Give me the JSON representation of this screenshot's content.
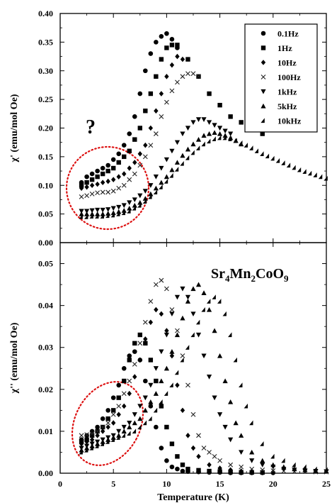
{
  "chart_data": [
    {
      "type": "scatter",
      "ylabel": "χ' (emu/mol Oe)",
      "xlabel": "",
      "xlim": [
        0,
        25
      ],
      "ylim": [
        0,
        0.4
      ],
      "yticks": [
        "0.00",
        "0.05",
        "0.10",
        "0.15",
        "0.20",
        "0.25",
        "0.30",
        "0.35",
        "0.40"
      ],
      "grid": false,
      "legend_position": "top-right",
      "annotation": "?",
      "highlight": "dotted red ellipse around low-temperature data",
      "series": [
        {
          "name": "0.1Hz",
          "marker": "circle",
          "x": [
            2,
            2.5,
            3,
            3.5,
            4,
            4.5,
            5,
            5.5,
            6,
            6.5,
            7,
            7.5,
            8,
            8.5,
            9,
            9.5,
            10,
            10.5,
            11
          ],
          "y": [
            0.105,
            0.115,
            0.12,
            0.125,
            0.13,
            0.135,
            0.145,
            0.155,
            0.17,
            0.19,
            0.22,
            0.26,
            0.3,
            0.33,
            0.35,
            0.36,
            0.365,
            0.355,
            0.34
          ]
        },
        {
          "name": "1Hz",
          "marker": "square",
          "x": [
            2,
            2.5,
            3,
            3.5,
            4,
            4.5,
            5,
            5.5,
            6,
            6.5,
            7,
            7.5,
            8,
            8.5,
            9,
            9.5,
            10,
            10.5,
            11,
            12,
            13,
            14,
            15,
            16,
            17,
            18,
            19
          ],
          "y": [
            0.1,
            0.105,
            0.11,
            0.115,
            0.12,
            0.125,
            0.13,
            0.14,
            0.15,
            0.16,
            0.18,
            0.2,
            0.23,
            0.26,
            0.29,
            0.32,
            0.34,
            0.345,
            0.345,
            0.32,
            0.29,
            0.26,
            0.24,
            0.22,
            0.21,
            0.2,
            0.19
          ]
        },
        {
          "name": "10Hz",
          "marker": "diamond",
          "x": [
            2,
            2.5,
            3,
            3.5,
            4,
            4.5,
            5,
            5.5,
            6,
            6.5,
            7,
            7.5,
            8,
            8.5,
            9,
            9.5,
            10,
            10.5,
            11,
            11.5
          ],
          "y": [
            0.095,
            0.097,
            0.1,
            0.102,
            0.105,
            0.107,
            0.11,
            0.115,
            0.12,
            0.13,
            0.14,
            0.155,
            0.17,
            0.2,
            0.23,
            0.26,
            0.29,
            0.31,
            0.325,
            0.32
          ]
        },
        {
          "name": "100Hz",
          "marker": "cross",
          "x": [
            2,
            2.5,
            3,
            3.5,
            4,
            4.5,
            5,
            5.5,
            6,
            6.5,
            7,
            7.5,
            8,
            8.5,
            9,
            9.5,
            10,
            10.5,
            11,
            11.5,
            12,
            12.5,
            13
          ],
          "y": [
            0.08,
            0.082,
            0.085,
            0.087,
            0.088,
            0.088,
            0.09,
            0.095,
            0.1,
            0.11,
            0.12,
            0.135,
            0.15,
            0.17,
            0.19,
            0.22,
            0.245,
            0.265,
            0.28,
            0.29,
            0.295,
            0.295,
            0.29
          ]
        },
        {
          "name": "1kHz",
          "marker": "triangle-down",
          "x": [
            2,
            2.5,
            3,
            3.5,
            4,
            4.5,
            5,
            5.5,
            6,
            6.5,
            7,
            7.5,
            8,
            8.5,
            9,
            9.5,
            10,
            10.5,
            11,
            11.5,
            12,
            12.5,
            13,
            13.5,
            14,
            14.5,
            15,
            15.5,
            16
          ],
          "y": [
            0.055,
            0.055,
            0.056,
            0.057,
            0.057,
            0.058,
            0.06,
            0.062,
            0.065,
            0.07,
            0.075,
            0.082,
            0.09,
            0.1,
            0.115,
            0.13,
            0.145,
            0.16,
            0.175,
            0.19,
            0.2,
            0.21,
            0.215,
            0.215,
            0.21,
            0.205,
            0.2,
            0.195,
            0.19
          ]
        },
        {
          "name": "5kHz",
          "marker": "triangle-up",
          "x": [
            2,
            2.5,
            3,
            3.5,
            4,
            4.5,
            5,
            5.5,
            6,
            6.5,
            7,
            7.5,
            8,
            8.5,
            9,
            9.5,
            10,
            10.5,
            11,
            11.5,
            12,
            12.5,
            13,
            13.5,
            14,
            14.5,
            15,
            15.5,
            16,
            16.5,
            17
          ],
          "y": [
            0.05,
            0.05,
            0.05,
            0.05,
            0.05,
            0.051,
            0.052,
            0.054,
            0.056,
            0.06,
            0.065,
            0.07,
            0.077,
            0.085,
            0.095,
            0.105,
            0.115,
            0.127,
            0.14,
            0.152,
            0.163,
            0.172,
            0.18,
            0.187,
            0.19,
            0.192,
            0.19,
            0.187,
            0.183,
            0.178,
            0.172
          ]
        },
        {
          "name": "10kHz",
          "marker": "half-triangle",
          "x": [
            2,
            2.5,
            3,
            3.5,
            4,
            4.5,
            5,
            5.5,
            6,
            6.5,
            7,
            7.5,
            8,
            8.5,
            9,
            9.5,
            10,
            10.5,
            11,
            11.5,
            12,
            12.5,
            13,
            13.5,
            14,
            14.5,
            15,
            15.5,
            16,
            16.5,
            17,
            17.5,
            18,
            18.5,
            19,
            19.5,
            20,
            20.5,
            21,
            21.5,
            22,
            22.5,
            23,
            23.5,
            24,
            24.5,
            25
          ],
          "y": [
            0.045,
            0.045,
            0.046,
            0.046,
            0.046,
            0.047,
            0.048,
            0.05,
            0.052,
            0.055,
            0.06,
            0.065,
            0.072,
            0.08,
            0.088,
            0.097,
            0.107,
            0.117,
            0.128,
            0.138,
            0.148,
            0.157,
            0.165,
            0.172,
            0.177,
            0.181,
            0.183,
            0.183,
            0.181,
            0.178,
            0.174,
            0.17,
            0.165,
            0.16,
            0.155,
            0.151,
            0.147,
            0.143,
            0.139,
            0.135,
            0.131,
            0.127,
            0.124,
            0.121,
            0.118,
            0.115,
            0.112
          ]
        }
      ]
    },
    {
      "type": "scatter",
      "ylabel": "χ'' (emu/mol Oe)",
      "xlabel": "Temperature (K)",
      "xlim": [
        0,
        25
      ],
      "ylim": [
        0,
        0.055
      ],
      "xticks": [
        "0",
        "5",
        "10",
        "15",
        "20",
        "25"
      ],
      "yticks": [
        "0.00",
        "0.01",
        "0.02",
        "0.03",
        "0.04",
        "0.05"
      ],
      "grid": false,
      "highlight": "dotted red ellipse around low-temperature data",
      "compound": {
        "base": "Sr",
        "s1": "4",
        "mid1": "Mn",
        "s2": "2",
        "mid2": "CoO",
        "s3": "9"
      },
      "series": [
        {
          "name": "0.1Hz",
          "marker": "circle",
          "x": [
            2,
            2.5,
            3,
            3.5,
            4,
            4.5,
            5,
            5.5,
            6,
            6.5,
            7,
            7.5,
            8,
            8.5,
            9,
            9.5,
            10,
            10.5,
            11,
            11.5,
            12,
            13,
            14,
            15,
            16,
            17,
            18,
            19,
            20
          ],
          "y": [
            0.008,
            0.009,
            0.01,
            0.011,
            0.013,
            0.015,
            0.018,
            0.021,
            0.025,
            0.028,
            0.029,
            0.027,
            0.022,
            0.016,
            0.011,
            0.006,
            0.003,
            0.0015,
            0.001,
            0.0005,
            0.0004,
            0.0003,
            0.0002,
            0.0002,
            0.0001,
            0.0001,
            0.0001,
            0.0001,
            0.0001
          ]
        },
        {
          "name": "1Hz",
          "marker": "square",
          "x": [
            2,
            2.5,
            3,
            3.5,
            4,
            4.5,
            5,
            5.5,
            6,
            6.5,
            7,
            7.5,
            8,
            8.5,
            9,
            9.5,
            10,
            10.5,
            11,
            11.5,
            12,
            13,
            14,
            15,
            16,
            17,
            18,
            19
          ],
          "y": [
            0.0075,
            0.008,
            0.009,
            0.01,
            0.011,
            0.013,
            0.015,
            0.018,
            0.022,
            0.027,
            0.031,
            0.033,
            0.031,
            0.027,
            0.022,
            0.016,
            0.011,
            0.007,
            0.004,
            0.002,
            0.001,
            0.0007,
            0.0005,
            0.0004,
            0.0003,
            0.0002,
            0.0002,
            0.0002
          ]
        },
        {
          "name": "10Hz",
          "marker": "diamond",
          "x": [
            2,
            2.5,
            3,
            3.5,
            4,
            4.5,
            5,
            5.5,
            6,
            6.5,
            7,
            7.5,
            8,
            8.5,
            9,
            9.5,
            10,
            10.5,
            11,
            11.5,
            12,
            12.5,
            13,
            14,
            15,
            16,
            17,
            18,
            19,
            20
          ],
          "y": [
            0.007,
            0.0075,
            0.008,
            0.009,
            0.01,
            0.011,
            0.012,
            0.014,
            0.016,
            0.019,
            0.023,
            0.027,
            0.032,
            0.036,
            0.039,
            0.038,
            0.034,
            0.028,
            0.021,
            0.015,
            0.009,
            0.006,
            0.004,
            0.002,
            0.0012,
            0.0008,
            0.0005,
            0.0004,
            0.0003,
            0.0002
          ]
        },
        {
          "name": "100Hz",
          "marker": "cross",
          "x": [
            2,
            2.5,
            3,
            3.5,
            4,
            4.5,
            5,
            5.5,
            6,
            6.5,
            7,
            7.5,
            8,
            8.5,
            9,
            9.5,
            10,
            10.5,
            11,
            11.5,
            12,
            12.5,
            13,
            13.5,
            14,
            14.5,
            15,
            16,
            17,
            18,
            19,
            20,
            21,
            22,
            23,
            24,
            25
          ],
          "y": [
            0.009,
            0.0092,
            0.0095,
            0.01,
            0.011,
            0.012,
            0.014,
            0.016,
            0.019,
            0.022,
            0.026,
            0.031,
            0.036,
            0.041,
            0.045,
            0.046,
            0.044,
            0.039,
            0.034,
            0.028,
            0.021,
            0.014,
            0.009,
            0.006,
            0.005,
            0.004,
            0.003,
            0.002,
            0.0015,
            0.001,
            0.0008,
            0.0006,
            0.0005,
            0.0004,
            0.0004,
            0.0003,
            0.0003
          ]
        },
        {
          "name": "1kHz",
          "marker": "triangle-down",
          "x": [
            2,
            2.5,
            3,
            3.5,
            4,
            4.5,
            5,
            5.5,
            6,
            6.5,
            7,
            7.5,
            8,
            8.5,
            9,
            9.5,
            10,
            10.5,
            11,
            11.5,
            12,
            12.5,
            13,
            13.5,
            14,
            14.5,
            15,
            15.5,
            16,
            17,
            18,
            19,
            20,
            21,
            22,
            23,
            24,
            25
          ],
          "y": [
            0.006,
            0.0065,
            0.007,
            0.0075,
            0.008,
            0.0085,
            0.009,
            0.01,
            0.011,
            0.012,
            0.014,
            0.016,
            0.018,
            0.021,
            0.025,
            0.029,
            0.033,
            0.038,
            0.042,
            0.044,
            0.042,
            0.038,
            0.033,
            0.028,
            0.023,
            0.018,
            0.014,
            0.011,
            0.008,
            0.005,
            0.003,
            0.002,
            0.0015,
            0.001,
            0.0008,
            0.0006,
            0.0005,
            0.0004
          ]
        },
        {
          "name": "5kHz",
          "marker": "triangle-up",
          "x": [
            2,
            2.5,
            3,
            3.5,
            4,
            4.5,
            5,
            5.5,
            6,
            6.5,
            7,
            7.5,
            8,
            8.5,
            9,
            9.5,
            10,
            10.5,
            11,
            11.5,
            12,
            12.5,
            13,
            13.5,
            14,
            14.5,
            15,
            15.5,
            16,
            16.5,
            17,
            18,
            19,
            20,
            21,
            22,
            23,
            24,
            25
          ],
          "y": [
            0.0055,
            0.006,
            0.0065,
            0.007,
            0.0075,
            0.008,
            0.0085,
            0.009,
            0.01,
            0.011,
            0.012,
            0.013,
            0.015,
            0.017,
            0.019,
            0.022,
            0.025,
            0.029,
            0.033,
            0.037,
            0.041,
            0.044,
            0.045,
            0.043,
            0.039,
            0.034,
            0.028,
            0.022,
            0.017,
            0.012,
            0.009,
            0.005,
            0.003,
            0.002,
            0.0015,
            0.001,
            0.0008,
            0.0006,
            0.0005
          ]
        },
        {
          "name": "10kHz",
          "marker": "half-triangle",
          "x": [
            2,
            2.5,
            3,
            3.5,
            4,
            4.5,
            5,
            5.5,
            6,
            6.5,
            7,
            7.5,
            8,
            8.5,
            9,
            9.5,
            10,
            10.5,
            11,
            11.5,
            12,
            12.5,
            13,
            13.5,
            14,
            14.5,
            15,
            15.5,
            16,
            16.5,
            17,
            17.5,
            18,
            19,
            20,
            21,
            22,
            23,
            24,
            25
          ],
          "y": [
            0.005,
            0.0055,
            0.006,
            0.0065,
            0.007,
            0.0075,
            0.008,
            0.0085,
            0.009,
            0.0095,
            0.01,
            0.011,
            0.012,
            0.013,
            0.015,
            0.017,
            0.019,
            0.021,
            0.024,
            0.027,
            0.03,
            0.033,
            0.036,
            0.039,
            0.041,
            0.042,
            0.041,
            0.038,
            0.033,
            0.027,
            0.021,
            0.016,
            0.012,
            0.007,
            0.004,
            0.003,
            0.002,
            0.0015,
            0.001,
            0.0008
          ]
        }
      ]
    }
  ]
}
